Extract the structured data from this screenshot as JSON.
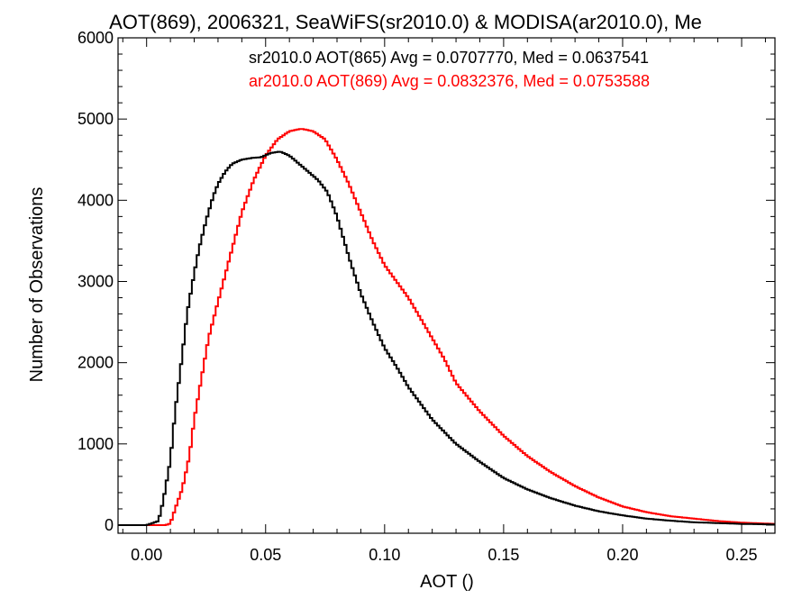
{
  "chart_data": {
    "type": "line",
    "title": "AOT(869), 2006321, SeaWiFS(sr2010.0) & MODISA(ar2010.0), Me",
    "xlabel": "AOT ()",
    "ylabel": "Number of Observations",
    "xlim": [
      -0.012,
      0.264
    ],
    "ylim": [
      -100,
      6000
    ],
    "xticks": [
      0.0,
      0.05,
      0.1,
      0.15,
      0.2,
      0.25
    ],
    "xtick_labels": [
      "0.00",
      "0.05",
      "0.10",
      "0.15",
      "0.20",
      "0.25"
    ],
    "yticks": [
      0,
      1000,
      2000,
      3000,
      4000,
      5000,
      6000
    ],
    "ytick_labels": [
      "0",
      "1000",
      "2000",
      "3000",
      "4000",
      "5000",
      "6000"
    ],
    "grid": false,
    "series": [
      {
        "color": "#000000",
        "annotation": "sr2010.0 AOT(865) Avg = 0.0707770, Med = 0.0637541",
        "x": [
          -0.012,
          0.0,
          0.005,
          0.007,
          0.01,
          0.012,
          0.015,
          0.017,
          0.02,
          0.022,
          0.025,
          0.028,
          0.03,
          0.033,
          0.036,
          0.04,
          0.044,
          0.048,
          0.052,
          0.056,
          0.06,
          0.064,
          0.068,
          0.072,
          0.076,
          0.08,
          0.085,
          0.09,
          0.095,
          0.1,
          0.105,
          0.11,
          0.115,
          0.12,
          0.125,
          0.13,
          0.14,
          0.15,
          0.16,
          0.17,
          0.18,
          0.19,
          0.2,
          0.21,
          0.22,
          0.23,
          0.24,
          0.25,
          0.264
        ],
        "y": [
          0,
          0,
          50,
          300,
          800,
          1400,
          2100,
          2600,
          3100,
          3400,
          3750,
          4050,
          4200,
          4350,
          4450,
          4500,
          4520,
          4530,
          4580,
          4600,
          4550,
          4450,
          4350,
          4250,
          4100,
          3800,
          3300,
          2850,
          2500,
          2180,
          1950,
          1700,
          1500,
          1300,
          1150,
          1000,
          780,
          580,
          440,
          330,
          240,
          170,
          120,
          80,
          55,
          35,
          25,
          15,
          8
        ]
      },
      {
        "color": "#ff0000",
        "annotation": "ar2010.0 AOT(869) Avg = 0.0832376, Med = 0.0753588",
        "x": [
          -0.012,
          0.005,
          0.008,
          0.01,
          0.012,
          0.015,
          0.018,
          0.02,
          0.023,
          0.026,
          0.03,
          0.035,
          0.04,
          0.045,
          0.05,
          0.055,
          0.06,
          0.065,
          0.07,
          0.075,
          0.08,
          0.085,
          0.09,
          0.095,
          0.1,
          0.105,
          0.11,
          0.115,
          0.12,
          0.125,
          0.13,
          0.14,
          0.15,
          0.16,
          0.17,
          0.18,
          0.19,
          0.2,
          0.21,
          0.22,
          0.23,
          0.24,
          0.25,
          0.264
        ],
        "y": [
          0,
          0,
          0,
          20,
          200,
          450,
          850,
          1300,
          1800,
          2300,
          2750,
          3300,
          3850,
          4250,
          4550,
          4750,
          4850,
          4880,
          4850,
          4750,
          4500,
          4200,
          3850,
          3500,
          3200,
          3000,
          2800,
          2550,
          2300,
          2050,
          1750,
          1400,
          1100,
          850,
          650,
          480,
          340,
          230,
          160,
          110,
          80,
          50,
          30,
          15
        ]
      }
    ]
  }
}
